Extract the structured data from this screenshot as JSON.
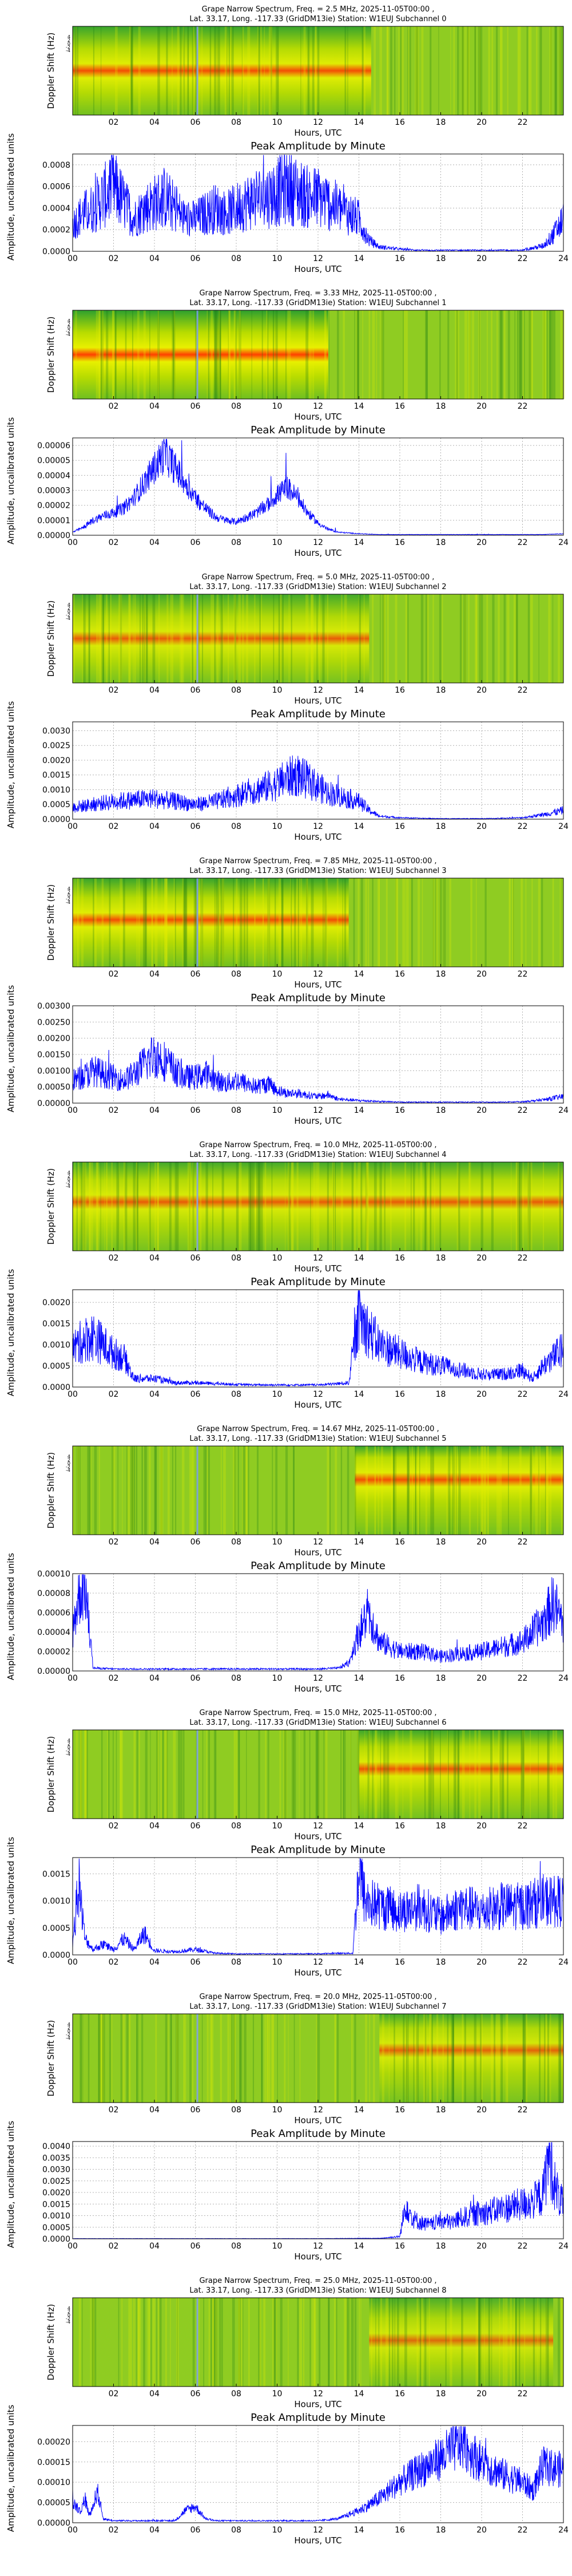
{
  "colors": {
    "trace": "#0000ff",
    "grid": "#b0b0b0",
    "spectrogram_low": "#2ea02e",
    "spectrogram_mid": "#e8f000",
    "spectrogram_high": "#ff4000",
    "marker_line": "#7f9fff"
  },
  "shared": {
    "spectrogram_ylabel": "Doppler Shift (Hz)",
    "amplitude_title": "Peak Amplitude by Minute",
    "amplitude_ylabel": "Amplitude, uncalibrated units",
    "xlabel": "Hours, UTC",
    "spectrogram_xticks": [
      "02",
      "04",
      "06",
      "08",
      "10",
      "12",
      "14",
      "16",
      "18",
      "20",
      "22"
    ],
    "amplitude_xticks": [
      "00",
      "02",
      "04",
      "06",
      "08",
      "10",
      "12",
      "14",
      "16",
      "18",
      "20",
      "22",
      "24"
    ]
  },
  "chart_data": [
    {
      "type": "heatmap",
      "title": "Grape Narrow Spectrum, Freq. = 2.5 MHz, 2025-11-05T00:00 ,",
      "subtitle": "Lat.  33.17, Long. -117.33 (GridDM13ie) Station: W1EUJ Subchannel 0",
      "xlabel": "Hours, UTC",
      "ylabel": "Doppler Shift (Hz)",
      "yticks": [
        "4",
        "2",
        "0",
        "-2",
        "-4"
      ],
      "band_center_hz": 0,
      "band_strength": 0.9,
      "active_start_h": 0,
      "active_end_h": 14.6
    },
    {
      "type": "line",
      "title": "Peak Amplitude by Minute",
      "xlabel": "Hours, UTC",
      "ylabel": "Amplitude, uncalibrated units",
      "xlim": [
        0,
        24
      ],
      "ylim": [
        0,
        0.0009
      ],
      "yticks": [
        "0.0000",
        "0.0002",
        "0.0004",
        "0.0006",
        "0.0008"
      ],
      "x": [
        0,
        0.5,
        1,
        1.5,
        2,
        2.5,
        3,
        3.5,
        4,
        4.5,
        5,
        5.5,
        6,
        6.5,
        7,
        7.5,
        8,
        8.5,
        9,
        9.5,
        10,
        10.5,
        11,
        11.5,
        12,
        12.5,
        13,
        13.5,
        14,
        14.5,
        15,
        16,
        17,
        18,
        19,
        20,
        21,
        22,
        23,
        23.5,
        24
      ],
      "y": [
        0.00025,
        0.00035,
        0.0004,
        0.0005,
        0.0006,
        0.00045,
        0.0003,
        0.0004,
        0.00045,
        0.0005,
        0.0004,
        0.0003,
        0.0003,
        0.00035,
        0.0004,
        0.00035,
        0.0004,
        0.00045,
        0.0005,
        0.0005,
        0.00055,
        0.0006,
        0.00055,
        0.0005,
        0.0005,
        0.00045,
        0.0004,
        0.00035,
        0.0003,
        0.0001,
        4e-05,
        2e-05,
        1e-05,
        1e-05,
        1e-05,
        1e-05,
        1e-05,
        1e-05,
        5e-05,
        0.00015,
        0.0003
      ],
      "noise": 0.6
    },
    {
      "type": "heatmap",
      "title": "Grape Narrow Spectrum, Freq. = 3.33 MHz, 2025-11-05T00:00 ,",
      "subtitle": "Lat.  33.17, Long. -117.33 (GridDM13ie) Station: W1EUJ Subchannel 1",
      "xlabel": "Hours, UTC",
      "ylabel": "Doppler Shift (Hz)",
      "yticks": [
        "4",
        "2",
        "0",
        "-2",
        "-4"
      ],
      "band_center_hz": 0,
      "band_strength": 1.0,
      "active_start_h": 0,
      "active_end_h": 12.5
    },
    {
      "type": "line",
      "title": "Peak Amplitude by Minute",
      "xlabel": "Hours, UTC",
      "ylabel": "Amplitude, uncalibrated units",
      "xlim": [
        0,
        24
      ],
      "ylim": [
        0,
        6.5e-05
      ],
      "yticks": [
        "0.00000",
        "0.00001",
        "0.00002",
        "0.00003",
        "0.00004",
        "0.00005",
        "0.00006"
      ],
      "x": [
        0,
        0.5,
        1,
        1.5,
        2,
        2.5,
        3,
        3.5,
        4,
        4.5,
        5,
        5.5,
        6,
        6.5,
        7,
        7.5,
        8,
        8.5,
        9,
        9.5,
        10,
        10.5,
        11,
        11.5,
        12,
        12.5,
        13,
        14,
        15,
        16,
        17,
        18,
        19,
        20,
        21,
        22,
        23,
        24
      ],
      "y": [
        2e-06,
        5e-06,
        1e-05,
        1.3e-05,
        1.5e-05,
        1.8e-05,
        2.5e-05,
        3.5e-05,
        4.5e-05,
        5.5e-05,
        4.5e-05,
        3.5e-05,
        2.5e-05,
        1.8e-05,
        1.2e-05,
        1e-05,
        9e-06,
        1.2e-05,
        1.5e-05,
        2e-05,
        2.7e-05,
        3.2e-05,
        2.5e-05,
        1.5e-05,
        8e-06,
        4e-06,
        2e-06,
        1e-06,
        5e-07,
        5e-07,
        5e-07,
        5e-07,
        5e-07,
        5e-07,
        5e-07,
        5e-07,
        5e-07,
        1e-06
      ],
      "noise": 0.25
    },
    {
      "type": "heatmap",
      "title": "Grape Narrow Spectrum, Freq. = 5.0 MHz, 2025-11-05T00:00 ,",
      "subtitle": "Lat.  33.17, Long. -117.33 (GridDM13ie) Station: W1EUJ Subchannel 2",
      "xlabel": "Hours, UTC",
      "ylabel": "Doppler Shift (Hz)",
      "yticks": [
        "4",
        "2",
        "0",
        "-2",
        "-4"
      ],
      "band_center_hz": 0,
      "band_strength": 0.8,
      "active_start_h": 0,
      "active_end_h": 14.5
    },
    {
      "type": "line",
      "title": "Peak Amplitude by Minute",
      "xlabel": "Hours, UTC",
      "ylabel": "Amplitude, uncalibrated units",
      "xlim": [
        0,
        24
      ],
      "ylim": [
        0,
        0.0033
      ],
      "yticks": [
        "0.0000",
        "0.0005",
        "0.0010",
        "0.0015",
        "0.0020",
        "0.0025",
        "0.0030"
      ],
      "x": [
        0,
        1,
        2,
        3,
        4,
        5,
        6,
        7,
        8,
        9,
        10,
        10.5,
        11,
        11.5,
        12,
        12.5,
        13,
        13.5,
        14,
        14.5,
        15,
        16,
        17,
        18,
        19,
        20,
        21,
        22,
        23,
        24
      ],
      "y": [
        0.0004,
        0.0005,
        0.0006,
        0.00065,
        0.0007,
        0.0006,
        0.0005,
        0.0006,
        0.0008,
        0.001,
        0.0012,
        0.0014,
        0.0015,
        0.0013,
        0.0011,
        0.0009,
        0.0008,
        0.0007,
        0.0006,
        0.0003,
        0.0001,
        5e-05,
        3e-05,
        2e-05,
        2e-05,
        2e-05,
        3e-05,
        5e-05,
        0.00015,
        0.0003
      ],
      "noise": 0.5
    },
    {
      "type": "heatmap",
      "title": "Grape Narrow Spectrum, Freq. = 7.85 MHz, 2025-11-05T00:00 ,",
      "subtitle": "Lat.  33.17, Long. -117.33 (GridDM13ie) Station: W1EUJ Subchannel 3",
      "xlabel": "Hours, UTC",
      "ylabel": "Doppler Shift (Hz)",
      "yticks": [
        "4",
        "2",
        "0",
        "-2",
        "-4"
      ],
      "band_center_hz": 0.3,
      "band_strength": 0.9,
      "active_start_h": 0,
      "active_end_h": 13.5
    },
    {
      "type": "line",
      "title": "Peak Amplitude by Minute",
      "xlabel": "Hours, UTC",
      "ylabel": "Amplitude, uncalibrated units",
      "xlim": [
        0,
        24
      ],
      "ylim": [
        0,
        0.003
      ],
      "yticks": [
        "0.00000",
        "0.00050",
        "0.00100",
        "0.00150",
        "0.00200",
        "0.00250",
        "0.00300"
      ],
      "x": [
        0,
        0.5,
        1,
        1.5,
        2,
        2.5,
        3,
        3.5,
        4,
        4.5,
        5,
        5.5,
        6,
        6.5,
        7,
        7.5,
        8,
        8.5,
        9,
        9.5,
        10,
        10.5,
        11,
        12,
        12.5,
        13,
        14,
        15,
        16,
        17,
        18,
        19,
        20,
        21,
        22,
        23,
        24
      ],
      "y": [
        0.0007,
        0.0008,
        0.001,
        0.0009,
        0.0008,
        0.0007,
        0.0009,
        0.0012,
        0.0015,
        0.0013,
        0.001,
        0.0008,
        0.0008,
        0.0009,
        0.0007,
        0.0006,
        0.0007,
        0.0006,
        0.0005,
        0.0006,
        0.0004,
        0.0003,
        0.0003,
        0.0002,
        0.00025,
        0.00012,
        8e-05,
        5e-05,
        3e-05,
        3e-05,
        3e-05,
        3e-05,
        3e-05,
        3e-05,
        4e-05,
        0.0001,
        0.0002
      ],
      "noise": 0.5
    },
    {
      "type": "heatmap",
      "title": "Grape Narrow Spectrum, Freq. = 10.0 MHz, 2025-11-05T00:00 ,",
      "subtitle": "Lat.  33.17, Long. -117.33 (GridDM13ie) Station: W1EUJ Subchannel 4",
      "xlabel": "Hours, UTC",
      "ylabel": "Doppler Shift (Hz)",
      "yticks": [
        "4",
        "2",
        "0",
        "-2",
        "-4"
      ],
      "band_center_hz": 0.5,
      "band_strength": 0.8,
      "active_start_h": 0,
      "active_end_h": 24
    },
    {
      "type": "line",
      "title": "Peak Amplitude by Minute",
      "xlabel": "Hours, UTC",
      "ylabel": "Amplitude, uncalibrated units",
      "xlim": [
        0,
        24
      ],
      "ylim": [
        0,
        0.0023
      ],
      "yticks": [
        "0.0000",
        "0.0005",
        "0.0010",
        "0.0015",
        "0.0020"
      ],
      "x": [
        0,
        0.5,
        1,
        1.5,
        2,
        2.5,
        3,
        4,
        5,
        6,
        7,
        8,
        9,
        10,
        11,
        12,
        13,
        13.5,
        14,
        14.5,
        15,
        16,
        17,
        18,
        19,
        20,
        21,
        22,
        22.5,
        23,
        23.5,
        24
      ],
      "y": [
        0.0009,
        0.0011,
        0.0012,
        0.001,
        0.0008,
        0.0007,
        0.0002,
        0.0002,
        0.0001,
        0.0001,
        8e-05,
        6e-05,
        5e-05,
        5e-05,
        5e-05,
        5e-05,
        8e-05,
        0.0001,
        0.0017,
        0.0013,
        0.001,
        0.0008,
        0.0006,
        0.0005,
        0.0004,
        0.0003,
        0.0003,
        0.0004,
        0.0002,
        0.0005,
        0.0007,
        0.0009
      ],
      "noise": 0.5
    },
    {
      "type": "heatmap",
      "title": "Grape Narrow Spectrum, Freq. = 14.67 MHz, 2025-11-05T00:00 ,",
      "subtitle": "Lat.  33.17, Long. -117.33 (GridDM13ie) Station: W1EUJ Subchannel 5",
      "xlabel": "Hours, UTC",
      "ylabel": "Doppler Shift (Hz)",
      "yticks": [
        "4",
        "2",
        "0",
        "-2",
        "-4"
      ],
      "band_center_hz": 1.2,
      "band_strength": 0.9,
      "active_start_h": 13.8,
      "active_end_h": 24
    },
    {
      "type": "line",
      "title": "Peak Amplitude by Minute",
      "xlabel": "Hours, UTC",
      "ylabel": "Amplitude, uncalibrated units",
      "xlim": [
        0,
        24
      ],
      "ylim": [
        0,
        0.0001
      ],
      "yticks": [
        "0.00000",
        "0.00002",
        "0.00004",
        "0.00006",
        "0.00008",
        "0.00010"
      ],
      "x": [
        0,
        0.3,
        0.6,
        1,
        2,
        4,
        6,
        8,
        10,
        12,
        13,
        13.5,
        14,
        14.5,
        15,
        16,
        17,
        18,
        19,
        20,
        21,
        22,
        23,
        23.5,
        24
      ],
      "y": [
        4e-05,
        8e-05,
        9e-05,
        3e-06,
        2e-06,
        2e-06,
        2e-06,
        2e-06,
        2e-06,
        2e-06,
        3e-06,
        8e-06,
        4e-05,
        6e-05,
        3e-05,
        2e-05,
        2e-05,
        1.5e-05,
        1.8e-05,
        2e-05,
        2.5e-05,
        3e-05,
        5e-05,
        7e-05,
        5e-05
      ],
      "noise": 0.45
    },
    {
      "type": "heatmap",
      "title": "Grape Narrow Spectrum, Freq. = 15.0 MHz, 2025-11-05T00:00 ,",
      "subtitle": "Lat.  33.17, Long. -117.33 (GridDM13ie) Station: W1EUJ Subchannel 6",
      "xlabel": "Hours, UTC",
      "ylabel": "Doppler Shift (Hz)",
      "yticks": [
        "4",
        "2",
        "0",
        "-2",
        "-4"
      ],
      "band_center_hz": 0.6,
      "band_strength": 0.85,
      "active_start_h": 14,
      "active_end_h": 24
    },
    {
      "type": "line",
      "title": "Peak Amplitude by Minute",
      "xlabel": "Hours, UTC",
      "ylabel": "Amplitude, uncalibrated units",
      "xlim": [
        0,
        24
      ],
      "ylim": [
        0,
        0.0018
      ],
      "yticks": [
        "0.0000",
        "0.0005",
        "0.0010",
        "0.0015"
      ],
      "x": [
        0,
        0.3,
        0.6,
        1,
        1.5,
        2,
        2.5,
        3,
        3.5,
        4,
        5,
        6,
        7,
        8,
        10,
        12,
        13,
        13.7,
        14,
        14.3,
        15,
        16,
        17,
        18,
        19,
        20,
        21,
        22,
        23,
        24
      ],
      "y": [
        0.0002,
        0.0013,
        0.0003,
        0.0001,
        0.0002,
        0.0001,
        0.0003,
        0.0001,
        0.0004,
        8e-05,
        6e-05,
        0.0001,
        3e-05,
        2e-05,
        2e-05,
        2e-05,
        3e-05,
        3e-05,
        0.0016,
        0.001,
        0.0009,
        0.0008,
        0.0009,
        0.0007,
        0.0009,
        0.0008,
        0.0009,
        0.0009,
        0.001,
        0.001
      ],
      "noise": 0.5
    },
    {
      "type": "heatmap",
      "title": "Grape Narrow Spectrum, Freq. = 20.0 MHz, 2025-11-05T00:00 ,",
      "subtitle": "Lat.  33.17, Long. -117.33 (GridDM13ie) Station: W1EUJ Subchannel 7",
      "xlabel": "Hours, UTC",
      "ylabel": "Doppler Shift (Hz)",
      "yticks": [
        "4",
        "2",
        "0",
        "-2",
        "-4"
      ],
      "band_center_hz": 0.9,
      "band_strength": 0.75,
      "active_start_h": 15,
      "active_end_h": 24
    },
    {
      "type": "line",
      "title": "Peak Amplitude by Minute",
      "xlabel": "Hours, UTC",
      "ylabel": "Amplitude, uncalibrated units",
      "xlim": [
        0,
        24
      ],
      "ylim": [
        0,
        0.0042
      ],
      "yticks": [
        "0.0000",
        "0.0005",
        "0.0010",
        "0.0015",
        "0.0020",
        "0.0025",
        "0.0030",
        "0.0035",
        "0.0040"
      ],
      "x": [
        0,
        2,
        4,
        6,
        8,
        10,
        12,
        14,
        15,
        16,
        16.3,
        16.6,
        17,
        17.5,
        18,
        18.5,
        19,
        19.5,
        20,
        20.5,
        21,
        21.5,
        22,
        22.5,
        23,
        23.3,
        23.6,
        24
      ],
      "y": [
        1e-05,
        1e-05,
        1e-05,
        1e-05,
        1e-05,
        1e-05,
        1e-05,
        2e-05,
        2e-05,
        0.0001,
        0.0016,
        0.0009,
        0.0007,
        0.0006,
        0.0008,
        0.0007,
        0.0009,
        0.001,
        0.0011,
        0.0012,
        0.0013,
        0.0014,
        0.0015,
        0.0016,
        0.0019,
        0.0038,
        0.0022,
        0.0014
      ],
      "noise": 0.5
    },
    {
      "type": "heatmap",
      "title": "Grape Narrow Spectrum, Freq. = 25.0 MHz, 2025-11-05T00:00 ,",
      "subtitle": "Lat.  33.17, Long. -117.33 (GridDM13ie) Station: W1EUJ Subchannel 8",
      "xlabel": "Hours, UTC",
      "ylabel": "Doppler Shift (Hz)",
      "yticks": [
        "4",
        "2",
        "0",
        "-2",
        "-4"
      ],
      "band_center_hz": 0.2,
      "band_strength": 0.7,
      "active_start_h": 14.5,
      "active_end_h": 23.5
    },
    {
      "type": "line",
      "title": "Peak Amplitude by Minute",
      "xlabel": "Hours, UTC",
      "ylabel": "Amplitude, uncalibrated units",
      "xlim": [
        0,
        24
      ],
      "ylim": [
        0,
        0.00024
      ],
      "yticks": [
        "0.00000",
        "0.00005",
        "0.00010",
        "0.00015",
        "0.00020"
      ],
      "x": [
        0,
        0.2,
        0.4,
        0.6,
        0.8,
        1,
        1.2,
        1.5,
        2,
        3,
        4,
        5,
        5.5,
        6,
        6.5,
        7,
        8,
        10,
        12,
        13,
        14,
        15,
        16,
        17,
        18,
        18.5,
        19,
        19.5,
        20,
        21,
        22,
        22.5,
        23,
        24
      ],
      "y": [
        5e-05,
        4e-05,
        3e-05,
        6e-05,
        2e-05,
        4e-05,
        8e-05,
        1e-05,
        5e-06,
        5e-06,
        5e-06,
        5e-06,
        3e-05,
        4e-05,
        1e-05,
        5e-06,
        5e-06,
        5e-06,
        5e-06,
        1e-05,
        3e-05,
        6e-05,
        0.0001,
        0.00013,
        0.00016,
        0.00018,
        0.0002,
        0.00017,
        0.00015,
        0.00012,
        0.0001,
        8e-05,
        0.00014,
        0.00013
      ],
      "noise": 0.35
    }
  ]
}
